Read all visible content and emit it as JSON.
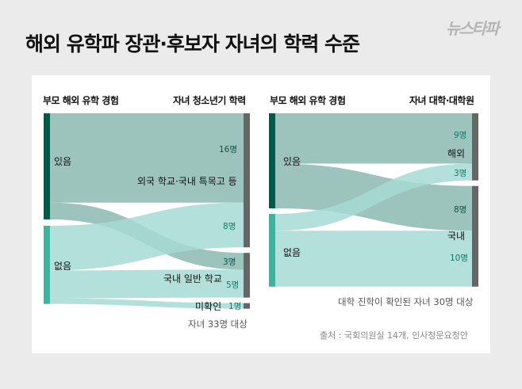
{
  "title": "해외 유학파 장관·후보자 자녀의 학력 수준",
  "logo": "뉴스타파",
  "colors": {
    "yes_node": "#005a4a",
    "no_node": "#3fb3a0",
    "target_node": "#666666",
    "yes_flow": "#8cb9b1",
    "no_flow": "#a6dbd4",
    "count_text": "#0e7a68"
  },
  "chart_data": [
    {
      "type": "sankey",
      "left_header": "부모 해외 유학 경험",
      "right_header": "자녀 청소년기 학력",
      "sources": [
        "있음",
        "없음"
      ],
      "targets": [
        "외국 학교·국내 특목고 등",
        "국내 일반 학교",
        "미확인"
      ],
      "flows": [
        {
          "source": "있음",
          "target": "외국 학교·국내 특목고 등",
          "value": 16,
          "label": "16명"
        },
        {
          "source": "있음",
          "target": "국내 일반 학교",
          "value": 3,
          "label": "3명"
        },
        {
          "source": "없음",
          "target": "외국 학교·국내 특목고 등",
          "value": 8,
          "label": "8명"
        },
        {
          "source": "없음",
          "target": "국내 일반 학교",
          "value": 5,
          "label": "5명"
        },
        {
          "source": "없음",
          "target": "미확인",
          "value": 1,
          "label": "1명"
        }
      ],
      "note": "자녀 33명 대상"
    },
    {
      "type": "sankey",
      "left_header": "부모 해외 유학 경험",
      "right_header": "자녀 대학·대학원",
      "sources": [
        "있음",
        "없음"
      ],
      "targets": [
        "해외",
        "국내"
      ],
      "flows": [
        {
          "source": "있음",
          "target": "해외",
          "value": 9,
          "label": "9명"
        },
        {
          "source": "있음",
          "target": "국내",
          "value": 8,
          "label": "8명"
        },
        {
          "source": "없음",
          "target": "해외",
          "value": 3,
          "label": "3명"
        },
        {
          "source": "없음",
          "target": "국내",
          "value": 10,
          "label": "10명"
        }
      ],
      "note": "대학 진학이 확인된 자녀 30명 대상"
    }
  ],
  "source": "출처 : 국회의원실 14개, 인사청문요청안"
}
